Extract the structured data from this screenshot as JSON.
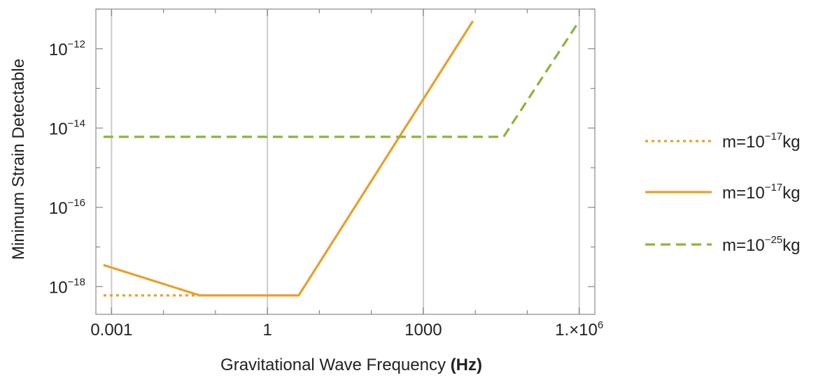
{
  "chart_data": {
    "type": "line",
    "xlabel_plain": "Gravitational Wave Frequency ",
    "xlabel_unit": "(Hz)",
    "ylabel": "Minimum Strain Detectable",
    "x_scale": "log",
    "y_scale": "log",
    "xlim": [
      0.0005,
      2000000
    ],
    "ylim": [
      2e-19,
      1e-11
    ],
    "grid": "vertical",
    "legend_position": "right",
    "x_ticks": [
      {
        "value": 0.001,
        "label": "0.001"
      },
      {
        "value": 1,
        "label": "1"
      },
      {
        "value": 1000,
        "label": "1000"
      },
      {
        "value": 1000000,
        "label": "1.×10",
        "exp": "6"
      }
    ],
    "y_ticks": [
      {
        "value": 1e-18,
        "base": "10",
        "exp": "−18"
      },
      {
        "value": 1e-16,
        "base": "10",
        "exp": "−16"
      },
      {
        "value": 1e-14,
        "base": "10",
        "exp": "−14"
      },
      {
        "value": 1e-12,
        "base": "10",
        "exp": "−12"
      }
    ],
    "series": [
      {
        "name_base": "m=10",
        "name_exp": "−17",
        "name_unit": "kg",
        "color": "#E6A02A",
        "dash": "dotted",
        "x": [
          0.0007,
          0.05
        ],
        "y": [
          6e-19,
          6e-19
        ]
      },
      {
        "name_base": "m=10",
        "name_exp": "−17",
        "name_unit": "kg",
        "color": "#E6A02A",
        "dash": "solid",
        "x": [
          0.0007,
          0.05,
          4,
          9000
        ],
        "y": [
          3.5e-18,
          6e-19,
          6e-19,
          5e-12
        ]
      },
      {
        "name_base": "m=10",
        "name_exp": "−25",
        "name_unit": "kg",
        "color": "#8DB33A",
        "dash": "dashed",
        "x": [
          0.0007,
          35000,
          1000000
        ],
        "y": [
          6e-15,
          6e-15,
          5e-12
        ]
      }
    ]
  }
}
